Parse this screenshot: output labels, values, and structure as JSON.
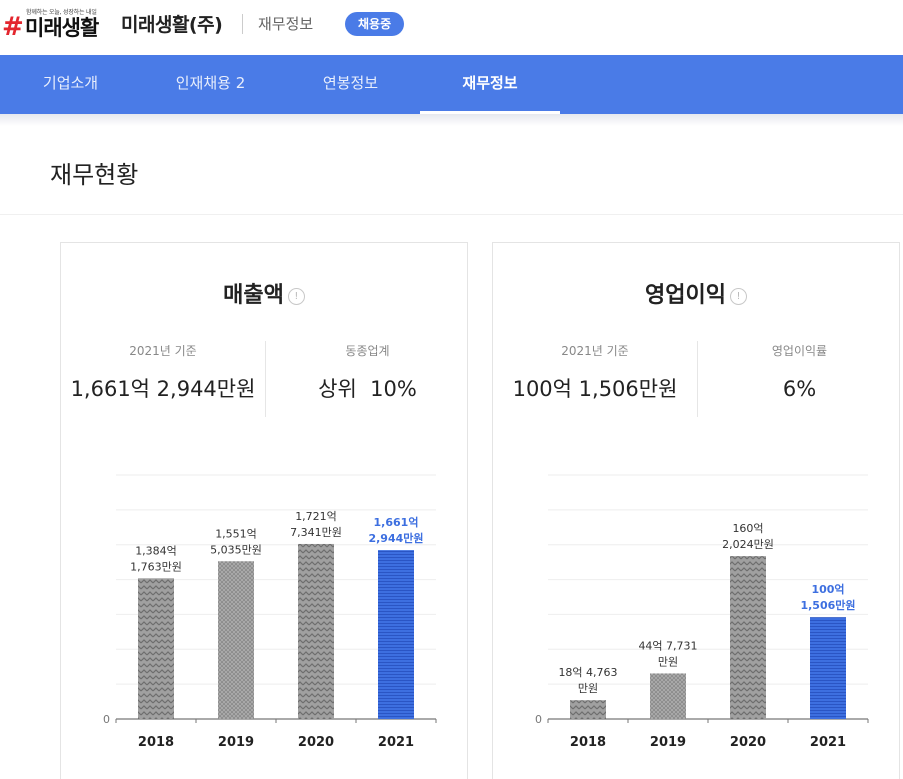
{
  "header": {
    "logo_tagline": "함께하는 오늘, 성장하는 내일",
    "logo_hash": "#",
    "logo_text": "미래생활",
    "company": "미래생활(주)",
    "breadcrumb": "재무정보",
    "badge": "채용중"
  },
  "nav": {
    "tabs": [
      {
        "label": "기업소개"
      },
      {
        "label": "인재채용 2"
      },
      {
        "label": "연봉정보"
      },
      {
        "label": "재무정보"
      }
    ],
    "active_index": 3
  },
  "section": {
    "title": "재무현황"
  },
  "cards": [
    {
      "title": "매출액",
      "info_icon": "info-icon",
      "stat_left": {
        "label": "2021년 기준",
        "value": "1,661억 2,944만원"
      },
      "stat_right": {
        "label": "동종업계",
        "value": "상위  10%"
      }
    },
    {
      "title": "영업이익",
      "info_icon": "info-icon",
      "stat_left": {
        "label": "2021년 기준",
        "value": "100억 1,506만원"
      },
      "stat_right": {
        "label": "영업이익률",
        "value": "6%"
      }
    }
  ],
  "colors": {
    "accent": "#4a7be7",
    "bar_gray": "#9a9a9a",
    "bar_highlight": "#3d6fe0",
    "logo_red": "#e3262e"
  },
  "chart_data": [
    {
      "type": "bar",
      "title": "매출액",
      "categories": [
        "2018",
        "2019",
        "2020",
        "2021"
      ],
      "values": [
        1384.1763,
        1551.5035,
        1721.7341,
        1661.2944
      ],
      "value_labels": [
        [
          "1,384억",
          "1,763만원"
        ],
        [
          "1,551억",
          "5,035만원"
        ],
        [
          "1,721억",
          "7,341만원"
        ],
        [
          "1,661억",
          "2,944만원"
        ]
      ],
      "highlight_index": 3,
      "y_tick_labels": [
        "0"
      ],
      "ylim": [
        0,
        2400
      ],
      "grid": true
    },
    {
      "type": "bar",
      "title": "영업이익",
      "categories": [
        "2018",
        "2019",
        "2020",
        "2021"
      ],
      "values": [
        18.4763,
        44.7731,
        160.2024,
        100.1506
      ],
      "value_labels": [
        [
          "18억 4,763",
          "만원"
        ],
        [
          "44억 7,731",
          "만원"
        ],
        [
          "160억",
          "2,024만원"
        ],
        [
          "100억",
          "1,506만원"
        ]
      ],
      "highlight_index": 3,
      "y_tick_labels": [
        "0"
      ],
      "ylim": [
        0,
        240
      ],
      "grid": true
    }
  ]
}
